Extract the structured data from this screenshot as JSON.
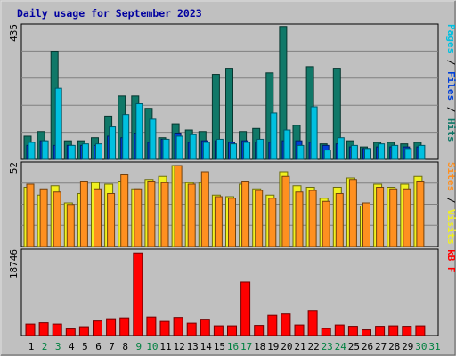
{
  "chart_data": [
    {
      "type": "bar",
      "title": "Daily usage for September 2023",
      "ylabel_parts": [
        {
          "text": "Pages",
          "color": "#00c0e0"
        },
        {
          "text": " / ",
          "color": "#000000"
        },
        {
          "text": "Files",
          "color": "#0040d8"
        },
        {
          "text": " / ",
          "color": "#000000"
        },
        {
          "text": "Hits",
          "color": "#107868"
        }
      ],
      "ymax_label": "435",
      "ylim": [
        0,
        435
      ],
      "categories": [
        "1",
        "2",
        "3",
        "4",
        "5",
        "6",
        "7",
        "8",
        "9",
        "10",
        "11",
        "12",
        "13",
        "14",
        "15",
        "16",
        "17",
        "18",
        "19",
        "20",
        "21",
        "22",
        "23",
        "24",
        "25",
        "26",
        "27",
        "28",
        "29",
        "30",
        "31"
      ],
      "series": [
        {
          "name": "Hits",
          "color": "#107868",
          "values": [
            75,
            90,
            350,
            60,
            60,
            70,
            140,
            205,
            205,
            165,
            70,
            115,
            95,
            90,
            275,
            295,
            90,
            100,
            280,
            430,
            110,
            300,
            50,
            295,
            60,
            40,
            55,
            55,
            50,
            55,
            0
          ]
        },
        {
          "name": "Files",
          "color": "#0040d8",
          "values": [
            45,
            60,
            45,
            45,
            45,
            45,
            75,
            70,
            85,
            55,
            65,
            85,
            55,
            60,
            60,
            55,
            60,
            55,
            55,
            60,
            60,
            55,
            45,
            50,
            40,
            35,
            40,
            40,
            40,
            40,
            0
          ]
        },
        {
          "name": "Pages",
          "color": "#00c0e0",
          "values": [
            55,
            60,
            230,
            45,
            50,
            50,
            105,
            145,
            180,
            130,
            65,
            75,
            80,
            55,
            65,
            50,
            55,
            65,
            150,
            95,
            45,
            170,
            30,
            70,
            45,
            35,
            50,
            45,
            35,
            45,
            0
          ]
        }
      ]
    },
    {
      "type": "bar",
      "ylabel_parts": [
        {
          "text": "Sites",
          "color": "#ff9020"
        },
        {
          "text": " / ",
          "color": "#000000"
        },
        {
          "text": "Visits",
          "color": "#f0f020"
        }
      ],
      "ymax_label": "52",
      "ylim": [
        0,
        52
      ],
      "categories": [
        "1",
        "2",
        "3",
        "4",
        "5",
        "6",
        "7",
        "8",
        "9",
        "10",
        "11",
        "12",
        "13",
        "14",
        "15",
        "16",
        "17",
        "18",
        "19",
        "20",
        "21",
        "22",
        "23",
        "24",
        "25",
        "26",
        "27",
        "28",
        "29",
        "30",
        "31"
      ],
      "series": [
        {
          "name": "Visits",
          "color": "#f0f020",
          "values": [
            38,
            33,
            39,
            28,
            34,
            41,
            40,
            42,
            37,
            43,
            45,
            52,
            41,
            41,
            33,
            32,
            40,
            37,
            33,
            48,
            39,
            38,
            31,
            38,
            44,
            26,
            40,
            38,
            40,
            45,
            0
          ]
        },
        {
          "name": "Sites",
          "color": "#ff9020",
          "values": [
            40,
            37,
            35,
            27,
            42,
            37,
            34,
            46,
            37,
            42,
            41,
            52,
            40,
            48,
            32,
            31,
            42,
            36,
            31,
            45,
            35,
            36,
            29,
            34,
            43,
            28,
            38,
            37,
            37,
            42,
            0
          ]
        }
      ]
    },
    {
      "type": "bar",
      "ylabel_parts": [
        {
          "text": "kB F",
          "color": "#ff0000"
        }
      ],
      "ymax_label": "18746",
      "ylim": [
        0,
        18746
      ],
      "categories": [
        "1",
        "2",
        "3",
        "4",
        "5",
        "6",
        "7",
        "8",
        "9",
        "10",
        "11",
        "12",
        "13",
        "14",
        "15",
        "16",
        "17",
        "18",
        "19",
        "20",
        "21",
        "22",
        "23",
        "24",
        "25",
        "26",
        "27",
        "28",
        "29",
        "30",
        "31"
      ],
      "series": [
        {
          "name": "kB F",
          "color": "#ff0000",
          "values": [
            2600,
            2900,
            2600,
            1500,
            2000,
            3300,
            3800,
            4000,
            18700,
            4200,
            3200,
            4100,
            2800,
            3700,
            2200,
            2200,
            12100,
            2300,
            4600,
            4900,
            2400,
            5700,
            1600,
            2400,
            2100,
            1300,
            2100,
            2200,
            2100,
            2200,
            0
          ]
        }
      ]
    }
  ],
  "x_label_colors": {
    "weekday": "#000000",
    "weekend": "#008040"
  },
  "weekend_days": [
    "2",
    "3",
    "9",
    "10",
    "16",
    "17",
    "23",
    "24",
    "30",
    "31"
  ]
}
